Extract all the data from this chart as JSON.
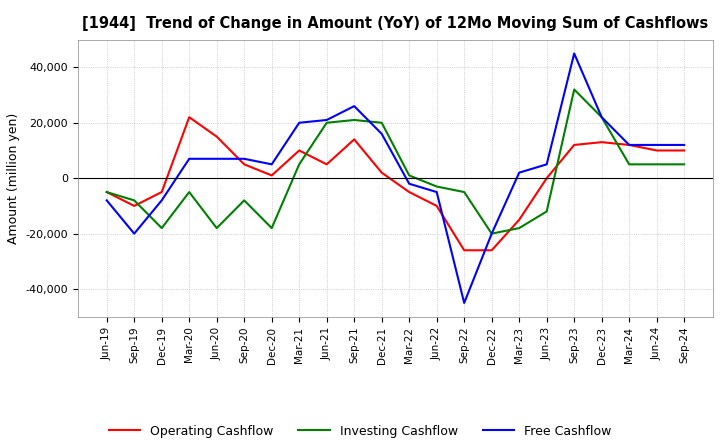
{
  "title": "[1944]  Trend of Change in Amount (YoY) of 12Mo Moving Sum of Cashflows",
  "ylabel": "Amount (million yen)",
  "ylim": [
    -50000,
    50000
  ],
  "yticks": [
    -40000,
    -20000,
    0,
    20000,
    40000
  ],
  "x_labels": [
    "Jun-19",
    "Sep-19",
    "Dec-19",
    "Mar-20",
    "Jun-20",
    "Sep-20",
    "Dec-20",
    "Mar-21",
    "Jun-21",
    "Sep-21",
    "Dec-21",
    "Mar-22",
    "Jun-22",
    "Sep-22",
    "Dec-22",
    "Mar-23",
    "Jun-23",
    "Sep-23",
    "Dec-23",
    "Mar-24",
    "Jun-24",
    "Sep-24"
  ],
  "operating": [
    -5000,
    -10000,
    -5000,
    22000,
    15000,
    5000,
    1000,
    10000,
    5000,
    14000,
    2000,
    -5000,
    -10000,
    -26000,
    -26000,
    -15000,
    0,
    12000,
    13000,
    12000,
    10000,
    10000
  ],
  "investing": [
    -5000,
    -8000,
    -18000,
    -5000,
    -18000,
    -8000,
    -18000,
    5000,
    20000,
    21000,
    20000,
    1000,
    -3000,
    -5000,
    -20000,
    -18000,
    -12000,
    32000,
    22000,
    5000,
    5000,
    5000
  ],
  "free": [
    -8000,
    -20000,
    -8000,
    7000,
    7000,
    7000,
    5000,
    20000,
    21000,
    26000,
    16000,
    -2000,
    -5000,
    -45000,
    -20000,
    2000,
    5000,
    45000,
    22000,
    12000,
    12000,
    12000
  ],
  "operating_color": "#ff0000",
  "investing_color": "#008000",
  "free_color": "#0000ff",
  "background_color": "#ffffff",
  "grid_color": "#b0b0b0"
}
